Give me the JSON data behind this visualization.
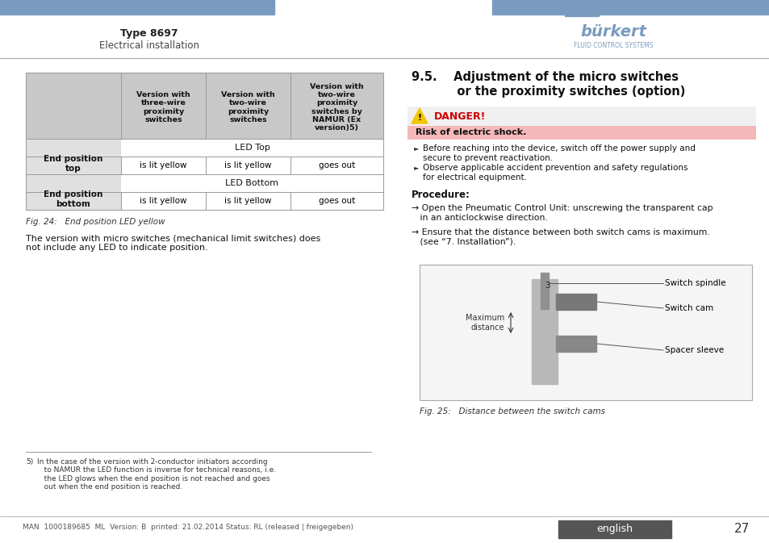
{
  "page_title": "Type 8697",
  "page_subtitle": "Electrical installation",
  "header_bar_color": "#7a9bbf",
  "logo_text": "bürkert",
  "logo_subtext": "FLUID CONTROL SYSTEMS",
  "section_title_line1": "9.5.    Adjustment of the micro switches",
  "section_title_line2": "           or the proximity switches (option)",
  "danger_title": "DANGER!",
  "danger_subtitle": "Risk of electric shock.",
  "danger_text1": "Before reaching into the device, switch off the power supply and\nsecure to prevent reactivation.",
  "danger_text2": "Observe applicable accident prevention and safety regulations\nfor electrical equipment.",
  "procedure_title": "Procedure:",
  "procedure_step1": "→ Open the Pneumatic Control Unit: unscrewing the transparent cap\n   in an anticlockwise direction.",
  "procedure_step2": "→ Ensure that the distance between both switch cams is maximum.\n   (see “7. Installation”).",
  "fig25_caption": "Fig. 25:   Distance between the switch cams",
  "fig24_caption": "Fig. 24:   End position LED yellow",
  "micro_switch_text": "The version with micro switches (mechanical limit switches) does\nnot include any LED to indicate position.",
  "footnote_num": "5)",
  "footnote_text": "In the case of the version with 2-conductor initiators according\n   to NAMUR the LED function is inverse for technical reasons, i.e.\n   the LED glows when the end position is not reached and goes\n   out when the end position is reached.",
  "bottom_text": "MAN  1000189685  ML  Version: B  printed: 21.02.2014 Status: RL (released | freigegeben)",
  "page_number": "27",
  "language": "english",
  "table_header_bg": "#c8c8c8",
  "table_col1_bg": "#e0e0e0",
  "danger_banner_bg": "#f5b8b8",
  "danger_icon_color": "#f5c500",
  "switch_spindle_label": "Switch spindle",
  "switch_cam_label": "Switch cam",
  "spacer_sleeve_label": "Spacer sleeve",
  "maximum_distance_label": "Maximum\ndistance"
}
